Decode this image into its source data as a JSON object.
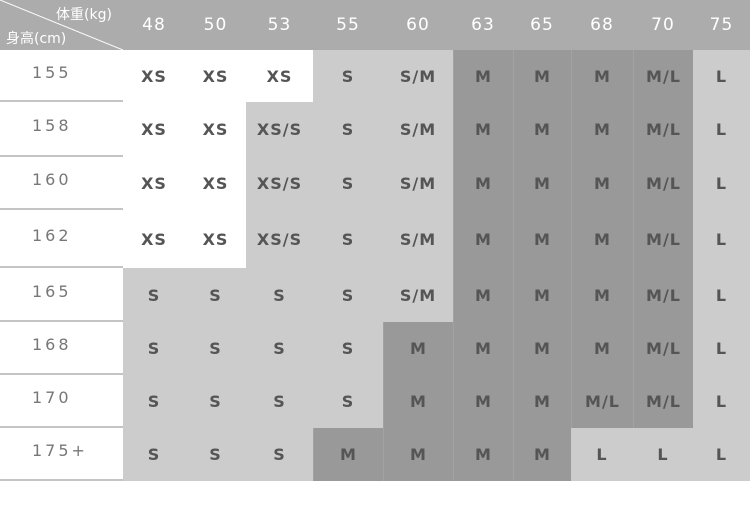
{
  "corner": {
    "weight_label": "体重(kg)",
    "height_label": "身高(cm)"
  },
  "weights": [
    "48",
    "50",
    "53",
    "55",
    "60",
    "63",
    "65",
    "68",
    "70",
    "75"
  ],
  "rows": [
    {
      "height": "155",
      "sizes": [
        "XS",
        "XS",
        "XS",
        "S",
        "S/M",
        "M",
        "M",
        "M",
        "M/L",
        "L"
      ],
      "shades": [
        "w",
        "w",
        "w",
        "l",
        "l",
        "d",
        "d",
        "d",
        "d",
        "l"
      ]
    },
    {
      "height": "158",
      "sizes": [
        "XS",
        "XS",
        "XS/S",
        "S",
        "S/M",
        "M",
        "M",
        "M",
        "M/L",
        "L"
      ],
      "shades": [
        "w",
        "w",
        "l",
        "l",
        "l",
        "d",
        "d",
        "d",
        "d",
        "l"
      ]
    },
    {
      "height": "160",
      "sizes": [
        "XS",
        "XS",
        "XS/S",
        "S",
        "S/M",
        "M",
        "M",
        "M",
        "M/L",
        "L"
      ],
      "shades": [
        "w",
        "w",
        "l",
        "l",
        "l",
        "d",
        "d",
        "d",
        "d",
        "l"
      ]
    },
    {
      "height": "162",
      "sizes": [
        "XS",
        "XS",
        "XS/S",
        "S",
        "S/M",
        "M",
        "M",
        "M",
        "M/L",
        "L"
      ],
      "shades": [
        "w",
        "w",
        "l",
        "l",
        "l",
        "d",
        "d",
        "d",
        "d",
        "l"
      ]
    },
    {
      "height": "165",
      "sizes": [
        "S",
        "S",
        "S",
        "S",
        "S/M",
        "M",
        "M",
        "M",
        "M/L",
        "L"
      ],
      "shades": [
        "l",
        "l",
        "l",
        "l",
        "l",
        "d",
        "d",
        "d",
        "d",
        "l"
      ]
    },
    {
      "height": "168",
      "sizes": [
        "S",
        "S",
        "S",
        "S",
        "M",
        "M",
        "M",
        "M",
        "M/L",
        "L"
      ],
      "shades": [
        "l",
        "l",
        "l",
        "l",
        "d",
        "d",
        "d",
        "d",
        "d",
        "l"
      ]
    },
    {
      "height": "170",
      "sizes": [
        "S",
        "S",
        "S",
        "S",
        "M",
        "M",
        "M",
        "M/L",
        "M/L",
        "L"
      ],
      "shades": [
        "l",
        "l",
        "l",
        "l",
        "d",
        "d",
        "d",
        "d",
        "d",
        "l"
      ]
    },
    {
      "height": "175+",
      "sizes": [
        "S",
        "S",
        "S",
        "M",
        "M",
        "M",
        "M",
        "L",
        "L",
        "L"
      ],
      "shades": [
        "l",
        "l",
        "l",
        "d",
        "d",
        "d",
        "d",
        "l",
        "l",
        "l"
      ]
    }
  ],
  "colors": {
    "header": "#acacac",
    "light": "#cccccc",
    "dark": "#999999",
    "text": "#555555"
  }
}
